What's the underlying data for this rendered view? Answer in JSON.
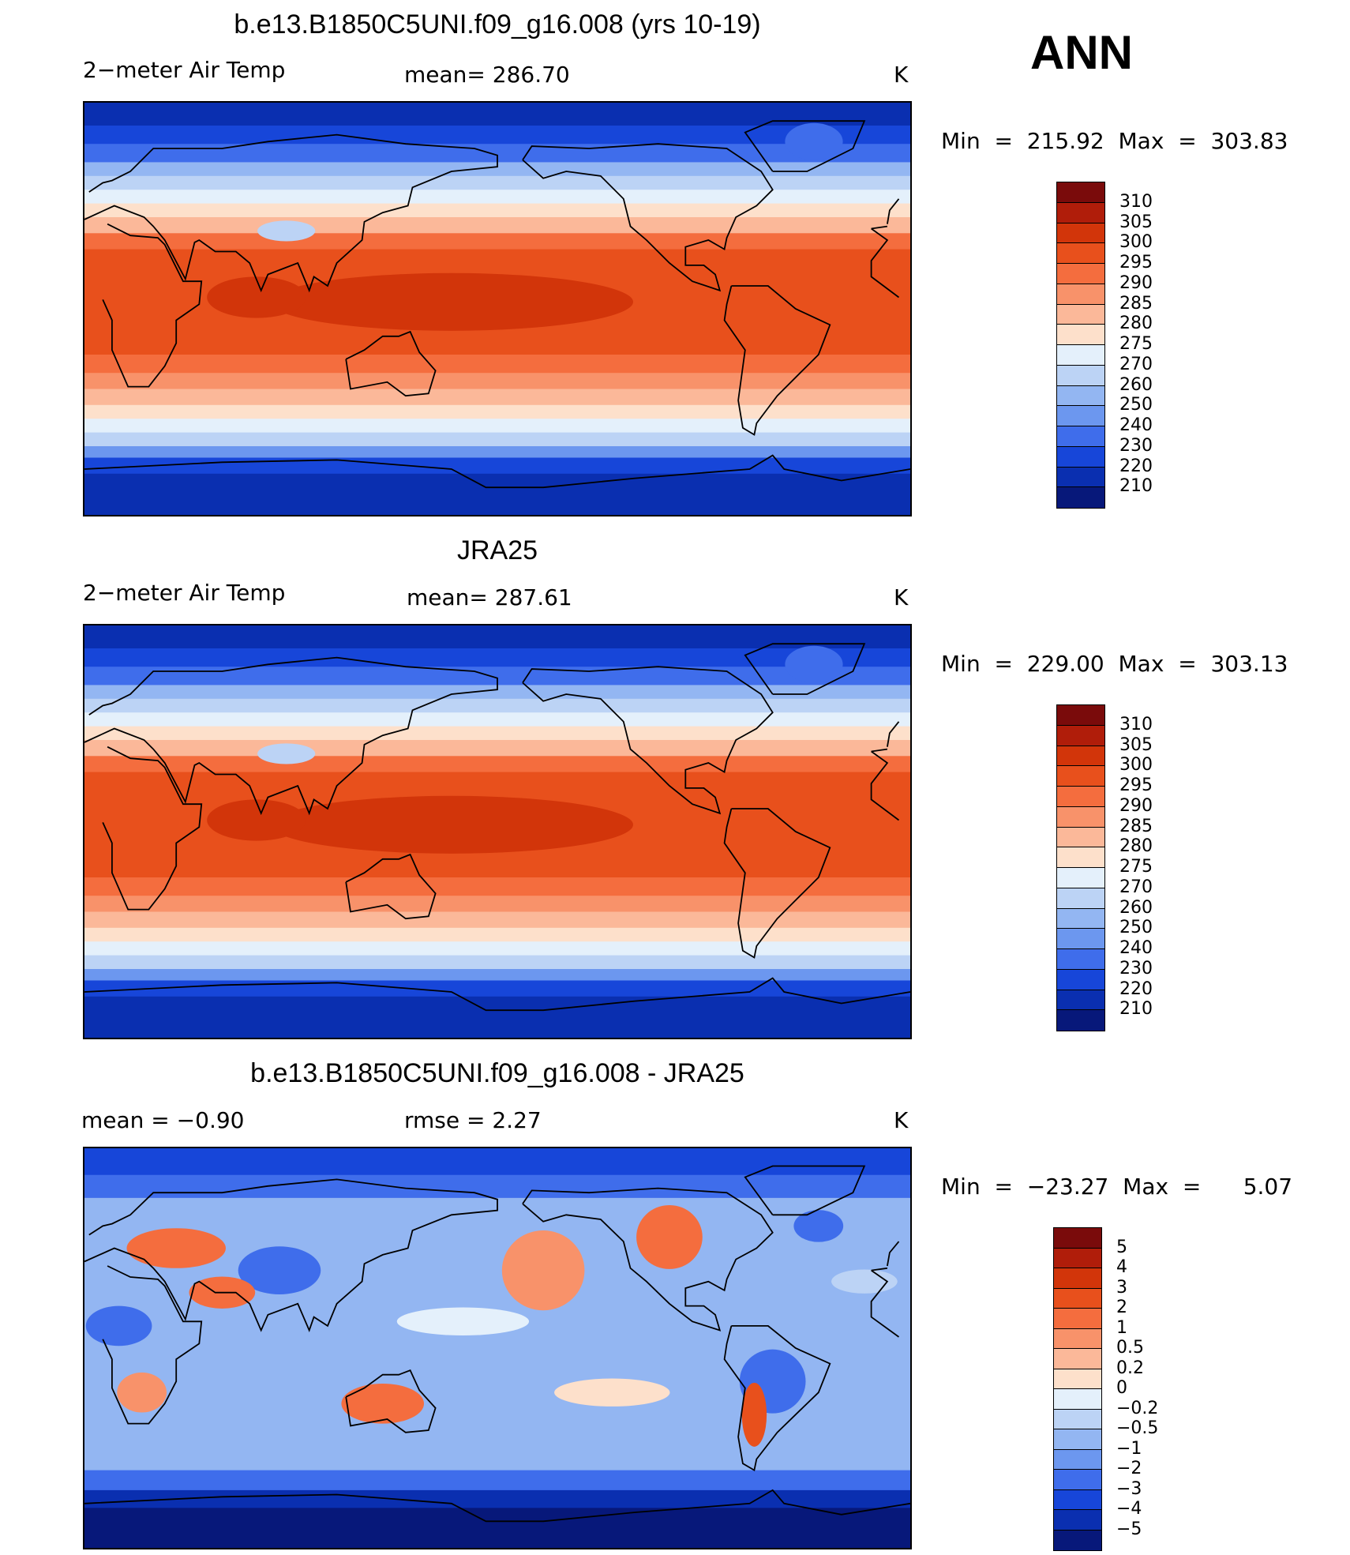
{
  "season": "ANN",
  "panels": [
    {
      "title": "b.e13.B1850C5UNI.f09_g16.008 (yrs 10-19)",
      "left_label": "2−meter Air Temp",
      "center_label": "mean=  286.70",
      "units": "K",
      "minmax": "Min  =  215.92  Max  =  303.83",
      "kind": "abs"
    },
    {
      "title": "JRA25",
      "left_label": "2−meter Air Temp",
      "center_label": "mean=  287.61",
      "units": "K",
      "minmax": "Min  =  229.00  Max  =  303.13",
      "kind": "abs"
    },
    {
      "title": "b.e13.B1850C5UNI.f09_g16.008 - JRA25",
      "left_label": "mean  =    −0.90",
      "center_label": "rmse  =     2.27",
      "units": "K",
      "minmax": "Min  =  −23.27  Max  =      5.07",
      "kind": "diff"
    }
  ],
  "colorbars": {
    "abs": {
      "labels": [
        "310",
        "305",
        "300",
        "295",
        "290",
        "285",
        "280",
        "275",
        "270",
        "260",
        "250",
        "240",
        "230",
        "220",
        "210"
      ],
      "colors": [
        "#7a0b0b",
        "#b01d0a",
        "#d2350a",
        "#e8501c",
        "#f46d3e",
        "#f8926a",
        "#fbb899",
        "#fde0cb",
        "#e4f0fb",
        "#bcd3f5",
        "#93b6f2",
        "#6c97ef",
        "#3f6deb",
        "#1746d9",
        "#0a2fb0",
        "#07187a"
      ]
    },
    "diff": {
      "labels": [
        "5",
        "4",
        "3",
        "2",
        "1",
        "0.5",
        "0.2",
        "0",
        "−0.2",
        "−0.5",
        "−1",
        "−2",
        "−3",
        "−4",
        "−5"
      ],
      "colors": [
        "#7a0b0b",
        "#b01d0a",
        "#d2350a",
        "#e8501c",
        "#f46d3e",
        "#f8926a",
        "#fbb899",
        "#fde0cb",
        "#e4f0fb",
        "#bcd3f5",
        "#93b6f2",
        "#6c97ef",
        "#3f6deb",
        "#1746d9",
        "#0a2fb0",
        "#07187a"
      ]
    }
  }
}
